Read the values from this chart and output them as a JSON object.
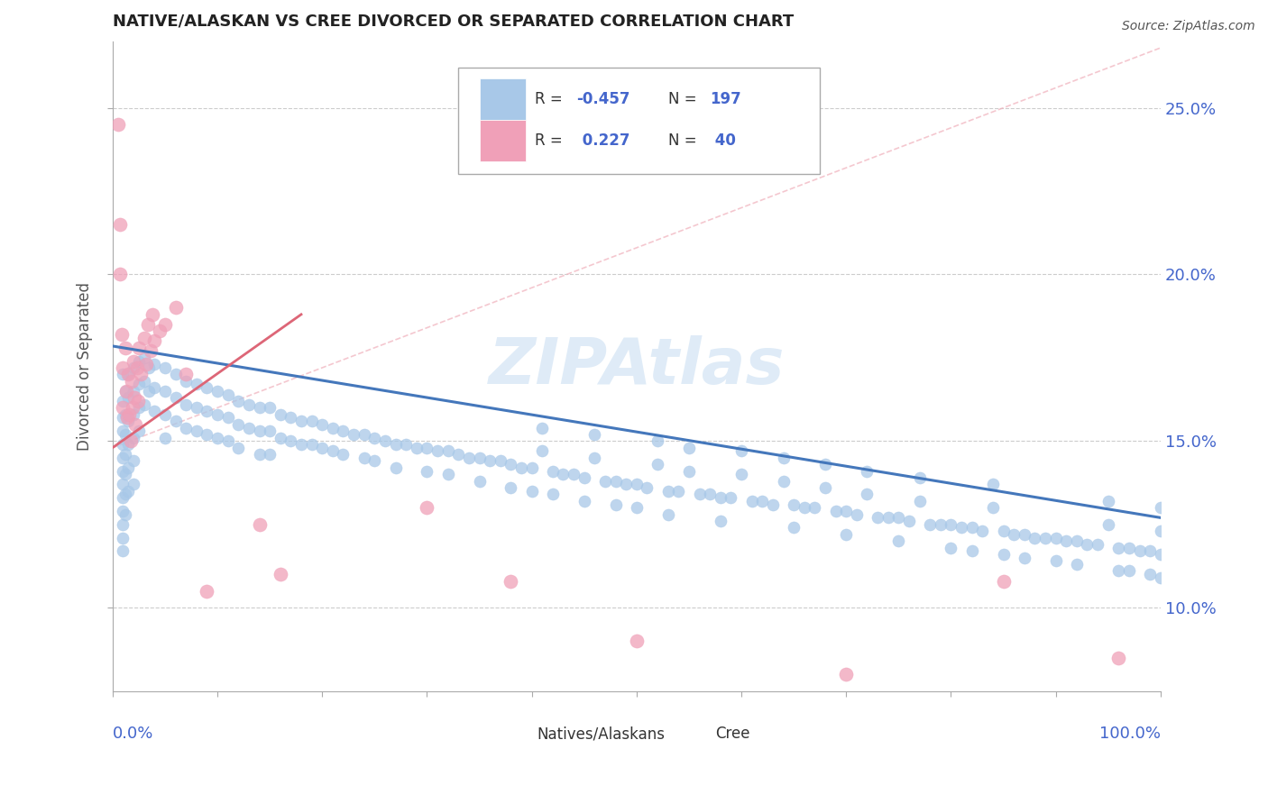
{
  "title": "NATIVE/ALASKAN VS CREE DIVORCED OR SEPARATED CORRELATION CHART",
  "source": "Source: ZipAtlas.com",
  "ylabel": "Divorced or Separated",
  "xmin": 0.0,
  "xmax": 1.0,
  "ymin": 0.075,
  "ymax": 0.27,
  "r_native": -0.457,
  "n_native": 197,
  "r_cree": 0.227,
  "n_cree": 40,
  "native_color": "#a8c8e8",
  "cree_color": "#f0a0b8",
  "native_line_color": "#4477bb",
  "cree_line_color": "#dd6677",
  "cree_dashed_color": "#f0b0bb",
  "watermark_color": "#b8d4ee",
  "title_color": "#222222",
  "source_color": "#555555",
  "background_color": "#ffffff",
  "legend_box_color": "#aaaaaa",
  "label_color": "#4466cc",
  "native_trendline": [
    0.0,
    0.1785,
    1.0,
    0.127
  ],
  "cree_trendline": [
    0.0,
    0.148,
    0.18,
    0.188
  ],
  "cree_dashed": [
    0.0,
    0.148,
    1.0,
    0.268
  ],
  "native_scatter": [
    [
      0.01,
      0.17
    ],
    [
      0.01,
      0.162
    ],
    [
      0.01,
      0.157
    ],
    [
      0.01,
      0.153
    ],
    [
      0.01,
      0.149
    ],
    [
      0.01,
      0.145
    ],
    [
      0.01,
      0.141
    ],
    [
      0.01,
      0.137
    ],
    [
      0.01,
      0.133
    ],
    [
      0.01,
      0.129
    ],
    [
      0.01,
      0.125
    ],
    [
      0.01,
      0.121
    ],
    [
      0.01,
      0.117
    ],
    [
      0.012,
      0.165
    ],
    [
      0.012,
      0.158
    ],
    [
      0.012,
      0.152
    ],
    [
      0.012,
      0.146
    ],
    [
      0.012,
      0.14
    ],
    [
      0.012,
      0.134
    ],
    [
      0.012,
      0.128
    ],
    [
      0.015,
      0.17
    ],
    [
      0.015,
      0.163
    ],
    [
      0.015,
      0.156
    ],
    [
      0.015,
      0.149
    ],
    [
      0.015,
      0.142
    ],
    [
      0.015,
      0.135
    ],
    [
      0.02,
      0.172
    ],
    [
      0.02,
      0.165
    ],
    [
      0.02,
      0.158
    ],
    [
      0.02,
      0.151
    ],
    [
      0.02,
      0.144
    ],
    [
      0.02,
      0.137
    ],
    [
      0.025,
      0.174
    ],
    [
      0.025,
      0.167
    ],
    [
      0.025,
      0.16
    ],
    [
      0.025,
      0.153
    ],
    [
      0.03,
      0.175
    ],
    [
      0.03,
      0.168
    ],
    [
      0.03,
      0.161
    ],
    [
      0.035,
      0.172
    ],
    [
      0.035,
      0.165
    ],
    [
      0.04,
      0.173
    ],
    [
      0.04,
      0.166
    ],
    [
      0.04,
      0.159
    ],
    [
      0.05,
      0.172
    ],
    [
      0.05,
      0.165
    ],
    [
      0.05,
      0.158
    ],
    [
      0.05,
      0.151
    ],
    [
      0.06,
      0.17
    ],
    [
      0.06,
      0.163
    ],
    [
      0.06,
      0.156
    ],
    [
      0.07,
      0.168
    ],
    [
      0.07,
      0.161
    ],
    [
      0.07,
      0.154
    ],
    [
      0.08,
      0.167
    ],
    [
      0.08,
      0.16
    ],
    [
      0.08,
      0.153
    ],
    [
      0.09,
      0.166
    ],
    [
      0.09,
      0.159
    ],
    [
      0.09,
      0.152
    ],
    [
      0.1,
      0.165
    ],
    [
      0.1,
      0.158
    ],
    [
      0.1,
      0.151
    ],
    [
      0.11,
      0.164
    ],
    [
      0.11,
      0.157
    ],
    [
      0.11,
      0.15
    ],
    [
      0.12,
      0.162
    ],
    [
      0.12,
      0.155
    ],
    [
      0.12,
      0.148
    ],
    [
      0.13,
      0.161
    ],
    [
      0.13,
      0.154
    ],
    [
      0.14,
      0.16
    ],
    [
      0.14,
      0.153
    ],
    [
      0.14,
      0.146
    ],
    [
      0.15,
      0.16
    ],
    [
      0.15,
      0.153
    ],
    [
      0.15,
      0.146
    ],
    [
      0.16,
      0.158
    ],
    [
      0.16,
      0.151
    ],
    [
      0.17,
      0.157
    ],
    [
      0.17,
      0.15
    ],
    [
      0.18,
      0.156
    ],
    [
      0.18,
      0.149
    ],
    [
      0.19,
      0.156
    ],
    [
      0.19,
      0.149
    ],
    [
      0.2,
      0.155
    ],
    [
      0.2,
      0.148
    ],
    [
      0.21,
      0.154
    ],
    [
      0.21,
      0.147
    ],
    [
      0.22,
      0.153
    ],
    [
      0.22,
      0.146
    ],
    [
      0.23,
      0.152
    ],
    [
      0.24,
      0.152
    ],
    [
      0.24,
      0.145
    ],
    [
      0.25,
      0.151
    ],
    [
      0.25,
      0.144
    ],
    [
      0.26,
      0.15
    ],
    [
      0.27,
      0.149
    ],
    [
      0.27,
      0.142
    ],
    [
      0.28,
      0.149
    ],
    [
      0.29,
      0.148
    ],
    [
      0.3,
      0.148
    ],
    [
      0.3,
      0.141
    ],
    [
      0.31,
      0.147
    ],
    [
      0.32,
      0.147
    ],
    [
      0.32,
      0.14
    ],
    [
      0.33,
      0.146
    ],
    [
      0.34,
      0.145
    ],
    [
      0.35,
      0.145
    ],
    [
      0.35,
      0.138
    ],
    [
      0.36,
      0.144
    ],
    [
      0.37,
      0.144
    ],
    [
      0.38,
      0.143
    ],
    [
      0.38,
      0.136
    ],
    [
      0.39,
      0.142
    ],
    [
      0.4,
      0.142
    ],
    [
      0.4,
      0.135
    ],
    [
      0.41,
      0.154
    ],
    [
      0.41,
      0.147
    ],
    [
      0.42,
      0.141
    ],
    [
      0.42,
      0.134
    ],
    [
      0.43,
      0.14
    ],
    [
      0.44,
      0.14
    ],
    [
      0.45,
      0.139
    ],
    [
      0.45,
      0.132
    ],
    [
      0.46,
      0.152
    ],
    [
      0.46,
      0.145
    ],
    [
      0.47,
      0.138
    ],
    [
      0.48,
      0.138
    ],
    [
      0.48,
      0.131
    ],
    [
      0.49,
      0.137
    ],
    [
      0.5,
      0.137
    ],
    [
      0.5,
      0.13
    ],
    [
      0.51,
      0.136
    ],
    [
      0.52,
      0.15
    ],
    [
      0.52,
      0.143
    ],
    [
      0.53,
      0.135
    ],
    [
      0.53,
      0.128
    ],
    [
      0.54,
      0.135
    ],
    [
      0.55,
      0.148
    ],
    [
      0.55,
      0.141
    ],
    [
      0.56,
      0.134
    ],
    [
      0.57,
      0.134
    ],
    [
      0.58,
      0.133
    ],
    [
      0.58,
      0.126
    ],
    [
      0.59,
      0.133
    ],
    [
      0.6,
      0.147
    ],
    [
      0.6,
      0.14
    ],
    [
      0.61,
      0.132
    ],
    [
      0.62,
      0.132
    ],
    [
      0.63,
      0.131
    ],
    [
      0.64,
      0.145
    ],
    [
      0.64,
      0.138
    ],
    [
      0.65,
      0.131
    ],
    [
      0.65,
      0.124
    ],
    [
      0.66,
      0.13
    ],
    [
      0.67,
      0.13
    ],
    [
      0.68,
      0.143
    ],
    [
      0.68,
      0.136
    ],
    [
      0.69,
      0.129
    ],
    [
      0.7,
      0.129
    ],
    [
      0.7,
      0.122
    ],
    [
      0.71,
      0.128
    ],
    [
      0.72,
      0.141
    ],
    [
      0.72,
      0.134
    ],
    [
      0.73,
      0.127
    ],
    [
      0.74,
      0.127
    ],
    [
      0.75,
      0.127
    ],
    [
      0.75,
      0.12
    ],
    [
      0.76,
      0.126
    ],
    [
      0.77,
      0.139
    ],
    [
      0.77,
      0.132
    ],
    [
      0.78,
      0.125
    ],
    [
      0.79,
      0.125
    ],
    [
      0.8,
      0.125
    ],
    [
      0.8,
      0.118
    ],
    [
      0.81,
      0.124
    ],
    [
      0.82,
      0.124
    ],
    [
      0.82,
      0.117
    ],
    [
      0.83,
      0.123
    ],
    [
      0.84,
      0.137
    ],
    [
      0.84,
      0.13
    ],
    [
      0.85,
      0.123
    ],
    [
      0.85,
      0.116
    ],
    [
      0.86,
      0.122
    ],
    [
      0.87,
      0.122
    ],
    [
      0.87,
      0.115
    ],
    [
      0.88,
      0.121
    ],
    [
      0.89,
      0.121
    ],
    [
      0.9,
      0.121
    ],
    [
      0.9,
      0.114
    ],
    [
      0.91,
      0.12
    ],
    [
      0.92,
      0.12
    ],
    [
      0.92,
      0.113
    ],
    [
      0.93,
      0.119
    ],
    [
      0.94,
      0.119
    ],
    [
      0.95,
      0.132
    ],
    [
      0.95,
      0.125
    ],
    [
      0.96,
      0.118
    ],
    [
      0.96,
      0.111
    ],
    [
      0.97,
      0.118
    ],
    [
      0.97,
      0.111
    ],
    [
      0.98,
      0.117
    ],
    [
      0.99,
      0.117
    ],
    [
      0.99,
      0.11
    ],
    [
      1.0,
      0.13
    ],
    [
      1.0,
      0.123
    ],
    [
      1.0,
      0.116
    ],
    [
      1.0,
      0.109
    ]
  ],
  "cree_scatter": [
    [
      0.005,
      0.245
    ],
    [
      0.007,
      0.215
    ],
    [
      0.007,
      0.2
    ],
    [
      0.009,
      0.182
    ],
    [
      0.01,
      0.172
    ],
    [
      0.01,
      0.16
    ],
    [
      0.012,
      0.178
    ],
    [
      0.013,
      0.165
    ],
    [
      0.014,
      0.157
    ],
    [
      0.015,
      0.17
    ],
    [
      0.016,
      0.158
    ],
    [
      0.017,
      0.15
    ],
    [
      0.018,
      0.168
    ],
    [
      0.019,
      0.16
    ],
    [
      0.02,
      0.174
    ],
    [
      0.021,
      0.163
    ],
    [
      0.022,
      0.155
    ],
    [
      0.023,
      0.172
    ],
    [
      0.024,
      0.162
    ],
    [
      0.025,
      0.178
    ],
    [
      0.027,
      0.17
    ],
    [
      0.03,
      0.181
    ],
    [
      0.032,
      0.173
    ],
    [
      0.034,
      0.185
    ],
    [
      0.036,
      0.177
    ],
    [
      0.038,
      0.188
    ],
    [
      0.04,
      0.18
    ],
    [
      0.045,
      0.183
    ],
    [
      0.05,
      0.185
    ],
    [
      0.06,
      0.19
    ],
    [
      0.07,
      0.17
    ],
    [
      0.09,
      0.105
    ],
    [
      0.14,
      0.125
    ],
    [
      0.16,
      0.11
    ],
    [
      0.3,
      0.13
    ],
    [
      0.38,
      0.108
    ],
    [
      0.5,
      0.09
    ],
    [
      0.7,
      0.08
    ],
    [
      0.85,
      0.108
    ],
    [
      0.96,
      0.085
    ]
  ]
}
